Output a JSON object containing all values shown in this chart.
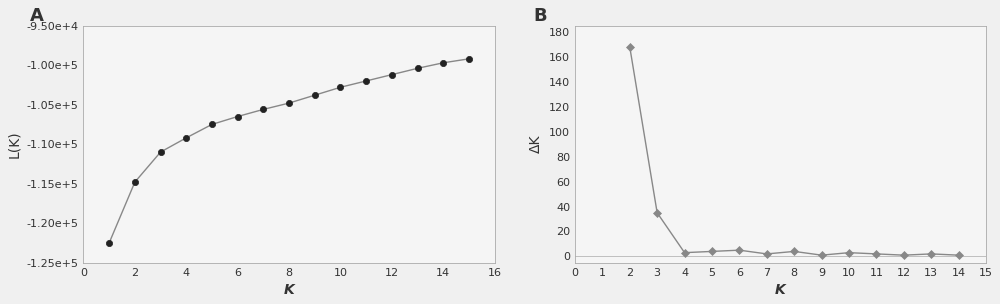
{
  "panel_A": {
    "label": "A",
    "x": [
      1,
      2,
      3,
      4,
      5,
      6,
      7,
      8,
      9,
      10,
      11,
      12,
      13,
      14,
      15
    ],
    "y": [
      -122500,
      -114800,
      -111000,
      -109200,
      -107500,
      -106500,
      -105600,
      -104800,
      -103800,
      -102800,
      -102000,
      -101200,
      -100400,
      -99700,
      -99200
    ],
    "xlabel": "K",
    "ylabel": "L(K)",
    "xlim": [
      0,
      16
    ],
    "ylim": [
      -125000,
      -95000
    ],
    "ytick_vals": [
      -125000,
      -120000,
      -115000,
      -110000,
      -105000,
      -100000,
      -95000
    ],
    "ytick_labels": [
      "-1.25e+5",
      "-1.20e+5",
      "-1.15e+5",
      "-1.10e+5",
      "-1.05e+5",
      "-1.00e+5",
      "-9.50e+4"
    ],
    "xticks": [
      0,
      2,
      4,
      6,
      8,
      10,
      12,
      14,
      16
    ],
    "line_color": "#888888",
    "marker_color": "#222222",
    "marker": "o",
    "marker_size": 4.5,
    "line_width": 1.0
  },
  "panel_B": {
    "label": "B",
    "x": [
      2,
      3,
      4,
      5,
      6,
      7,
      8,
      9,
      10,
      11,
      12,
      13,
      14
    ],
    "y": [
      168,
      35,
      3,
      4,
      5,
      2,
      4,
      1,
      3,
      2,
      1,
      2,
      1
    ],
    "xlabel": "K",
    "ylabel": "ΔK",
    "xlim": [
      0,
      15
    ],
    "ylim": [
      -5,
      185
    ],
    "ytick_vals": [
      0,
      20,
      40,
      60,
      80,
      100,
      120,
      140,
      160,
      180
    ],
    "ytick_labels": [
      "0",
      "20",
      "40",
      "60",
      "80",
      "100",
      "120",
      "140",
      "160",
      "180"
    ],
    "xticks": [
      0,
      1,
      2,
      3,
      4,
      5,
      6,
      7,
      8,
      9,
      10,
      11,
      12,
      13,
      14,
      15
    ],
    "line_color": "#888888",
    "marker_color": "#888888",
    "marker": "D",
    "marker_size": 4,
    "line_width": 1.0
  },
  "bg_color": "#f5f5f5",
  "fig_color": "#f0f0f0",
  "text_color": "#333333",
  "spine_color": "#aaaaaa",
  "tick_label_size": 8,
  "axis_label_size": 10,
  "panel_label_size": 13
}
